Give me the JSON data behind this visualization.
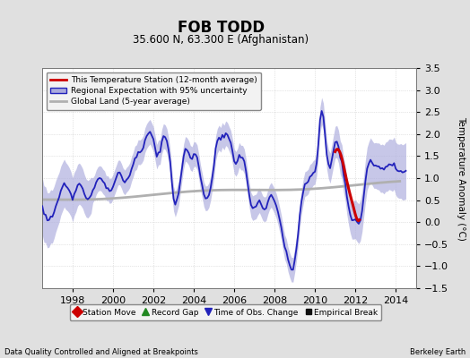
{
  "title": "FOB TODD",
  "subtitle": "35.600 N, 63.300 E (Afghanistan)",
  "ylabel": "Temperature Anomaly (°C)",
  "footer_left": "Data Quality Controlled and Aligned at Breakpoints",
  "footer_right": "Berkeley Earth",
  "xlim": [
    1996.5,
    2015.0
  ],
  "ylim": [
    -1.5,
    3.5
  ],
  "yticks": [
    -1.5,
    -1.0,
    -0.5,
    0.0,
    0.5,
    1.0,
    1.5,
    2.0,
    2.5,
    3.0,
    3.5
  ],
  "xticks": [
    1998,
    2000,
    2002,
    2004,
    2006,
    2008,
    2010,
    2012,
    2014
  ],
  "bg_color": "#e0e0e0",
  "plot_bg_color": "#ffffff",
  "regional_color": "#2222bb",
  "regional_fill_color": "#aaaadd",
  "station_color": "#cc0000",
  "global_color": "#b0b0b0",
  "legend_items": [
    {
      "label": "This Temperature Station (12-month average)",
      "color": "#cc0000",
      "lw": 2.0
    },
    {
      "label": "Regional Expectation with 95% uncertainty",
      "color": "#2222bb",
      "lw": 1.5
    },
    {
      "label": "Global Land (5-year average)",
      "color": "#b0b0b0",
      "lw": 2.0
    }
  ],
  "bottom_legend": [
    {
      "label": "Station Move",
      "color": "#cc0000",
      "marker": "D"
    },
    {
      "label": "Record Gap",
      "color": "#228822",
      "marker": "^"
    },
    {
      "label": "Time of Obs. Change",
      "color": "#2222bb",
      "marker": "v"
    },
    {
      "label": "Empirical Break",
      "color": "#111111",
      "marker": "s"
    }
  ]
}
